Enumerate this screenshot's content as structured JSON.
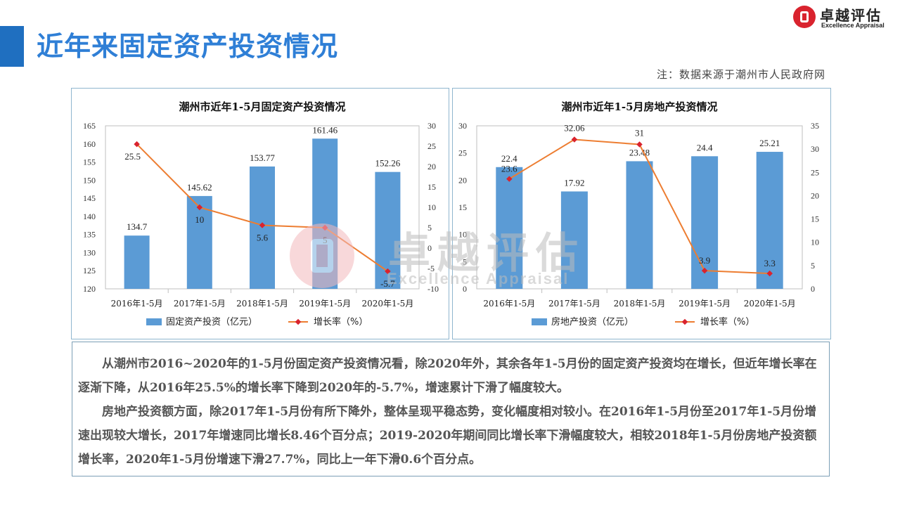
{
  "title": "近年来固定资产投资情况",
  "logo": {
    "cn": "卓越评估",
    "en": "Excellence Appraisal"
  },
  "note": "注：数据来源于潮州市人民政府网",
  "watermark": {
    "cn": "卓越评估",
    "en": "Excellence Appraisal"
  },
  "colors": {
    "accent": "#2f7fd6",
    "bar": "#5b9bd5",
    "line": "#ed7d31",
    "marker": "#d9232e"
  },
  "chart_data": [
    {
      "type": "bar",
      "title": "潮州市近年1-5月固定资产投资情况",
      "categories": [
        "2016年1-5月",
        "2017年1-5月",
        "2018年1-5月",
        "2019年1-5月",
        "2020年1-5月"
      ],
      "series": [
        {
          "name": "固定资产投资（亿元）",
          "type": "bar",
          "axis": "left",
          "values": [
            134.7,
            145.62,
            153.77,
            161.46,
            152.26
          ]
        },
        {
          "name": "增长率（%）",
          "type": "line",
          "axis": "right",
          "values": [
            25.5,
            10,
            5.6,
            5,
            -5.7
          ]
        }
      ],
      "ylim_left": [
        120,
        165
      ],
      "yticks_left": [
        120,
        125,
        130,
        135,
        140,
        145,
        150,
        155,
        160,
        165
      ],
      "ylim_right": [
        -10,
        30
      ],
      "yticks_right": [
        -10,
        -5,
        0,
        5,
        10,
        15,
        20,
        25,
        30
      ],
      "bar_labels": [
        "134.7",
        "145.62",
        "153.77",
        "161.46",
        "152.26"
      ],
      "line_labels": [
        "25.5",
        "10",
        "5.6",
        "5",
        "-5.7"
      ],
      "legend_position": "bottom"
    },
    {
      "type": "bar",
      "title": "潮州市近年1-5月房地产投资情况",
      "categories": [
        "2016年1-5月",
        "2017年1-5月",
        "2018年1-5月",
        "2019年1-5月",
        "2020年1-5月"
      ],
      "series": [
        {
          "name": "房地产投资（亿元）",
          "type": "bar",
          "axis": "left",
          "values": [
            22.4,
            17.92,
            23.48,
            24.4,
            25.21
          ]
        },
        {
          "name": "增长率（%）",
          "type": "line",
          "axis": "right",
          "values": [
            23.6,
            32.06,
            31,
            3.9,
            3.3
          ]
        }
      ],
      "ylim_left": [
        0,
        30
      ],
      "yticks_left": [
        0,
        5,
        10,
        15,
        20,
        25,
        30
      ],
      "ylim_right": [
        0,
        35
      ],
      "yticks_right": [
        0,
        5,
        10,
        15,
        20,
        25,
        30,
        35
      ],
      "bar_labels": [
        "22.4",
        "17.92",
        "23.48",
        "24.4",
        "25.21"
      ],
      "line_labels": [
        "23.6",
        "32.06",
        "31",
        "3.9",
        "3.3"
      ],
      "legend_position": "bottom"
    }
  ],
  "paragraphs": [
    "从潮州市2016~2020年的1-5月份固定资产投资情况看，除2020年外，其余各年1-5月份的固定资产投资均在增长，但近年增长率在逐渐下降，从2016年25.5%的增长率下降到2020年的-5.7%，增速累计下滑了幅度较大。",
    "房地产投资额方面，除2017年1-5月份有所下降外，整体呈现平稳态势，变化幅度相对较小。在2016年1-5月份至2017年1-5月份增速出现较大增长，2017年增速同比增长8.46个百分点；2019-2020年期间同比增长率下滑幅度较大，相较2018年1-5月份房地产投资额增长率，2020年1-5月份增速下滑27.7%，同比上一年下滑0.6个百分点。"
  ]
}
